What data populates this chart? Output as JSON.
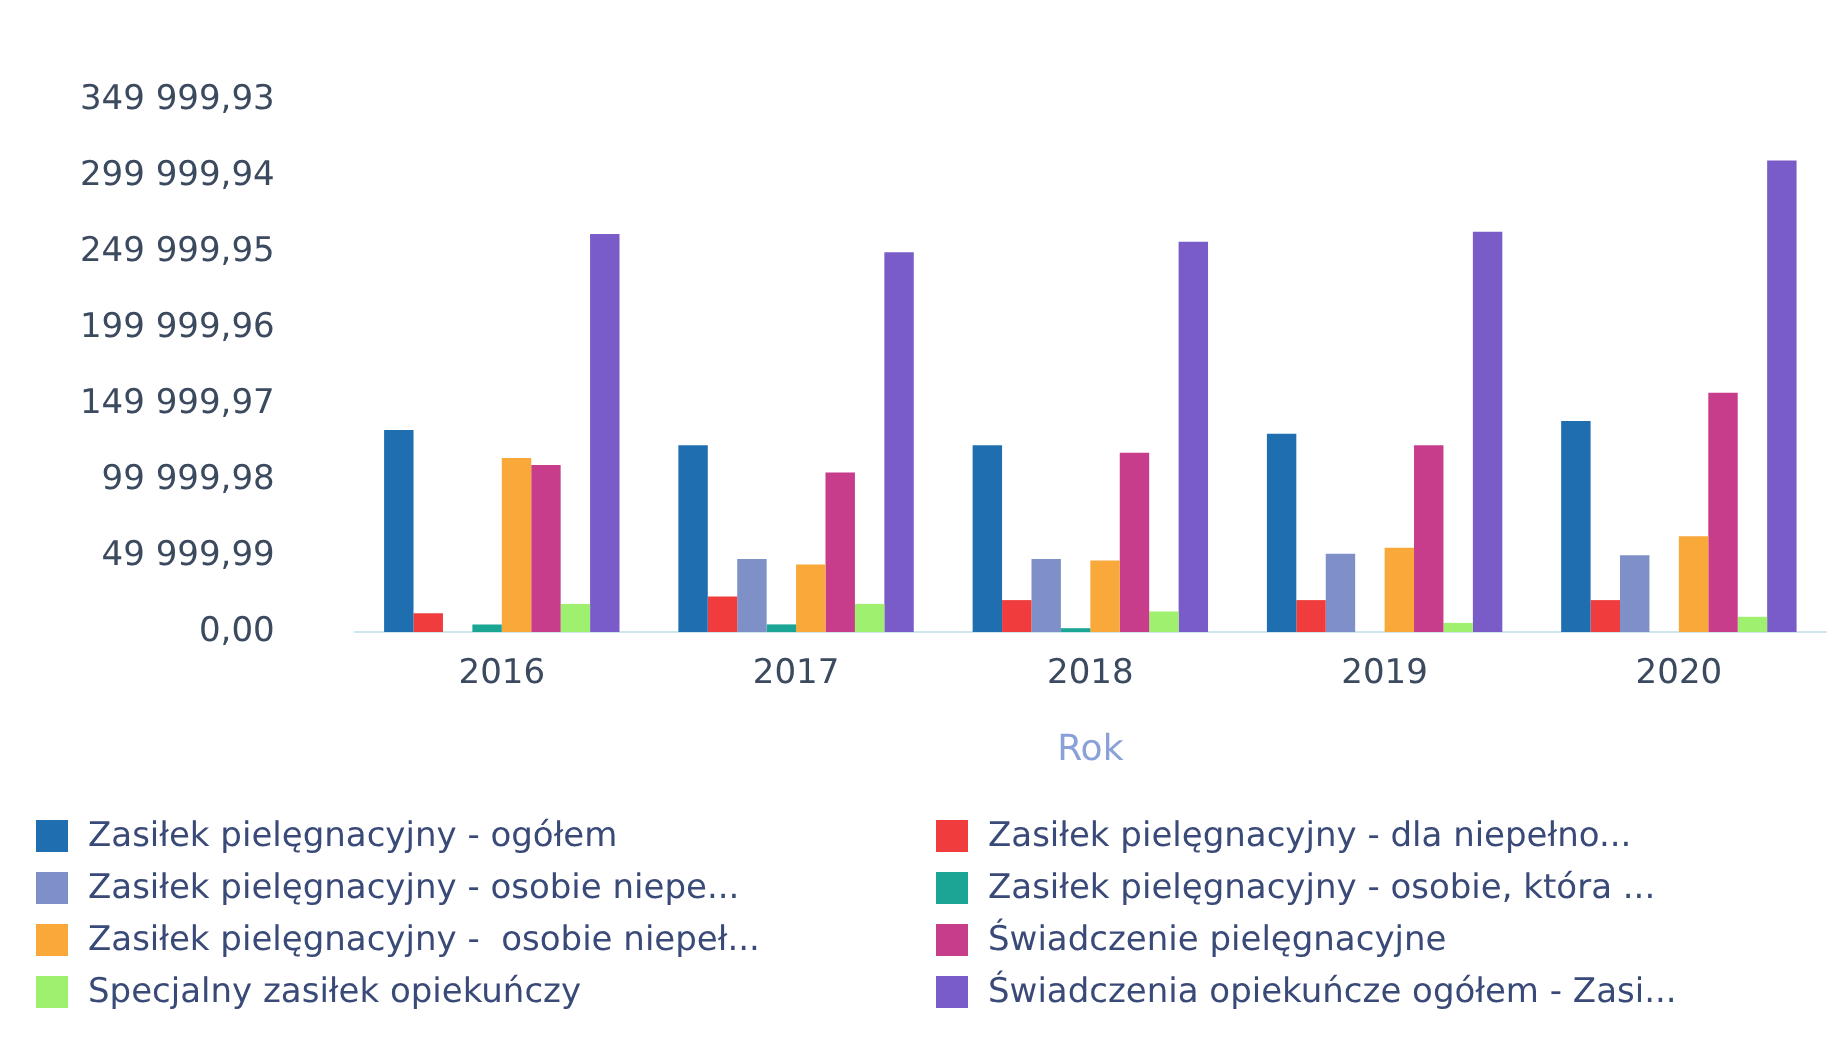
{
  "chart_data": {
    "type": "bar",
    "xlabel": "Rok",
    "categories": [
      "2016",
      "2017",
      "2018",
      "2019",
      "2020"
    ],
    "series": [
      {
        "name": "Zasiłek pielęgnacyjny - ogółem",
        "color": "#1f6fb0",
        "values": [
          133000,
          123000,
          123000,
          130500,
          139000
        ]
      },
      {
        "name": "Zasiłek pielęgnacyjny - dla niepełno...",
        "color": "#f03c3c",
        "values": [
          12300,
          23400,
          21000,
          21000,
          21000
        ]
      },
      {
        "name": "Zasiłek pielęgnacyjny - osobie niepe...",
        "color": "#7f8fc8",
        "values": [
          null,
          48000,
          48000,
          51500,
          50500
        ]
      },
      {
        "name": "Zasiłek pielęgnacyjny - osobie, która ...",
        "color": "#1aa594",
        "values": [
          5000,
          5000,
          2500,
          null,
          null
        ]
      },
      {
        "name": "Zasiłek pielęgnacyjny -  osobie niepeł...",
        "color": "#f9a83a",
        "values": [
          114500,
          44500,
          47000,
          55500,
          63000
        ]
      },
      {
        "name": "Świadczenie pielęgnacyjne",
        "color": "#c83c8c",
        "values": [
          110000,
          105000,
          118000,
          123000,
          157500
        ]
      },
      {
        "name": "Specjalny zasiłek opiekuńczy",
        "color": "#a0f070",
        "values": [
          18500,
          18500,
          13500,
          6000,
          10000
        ]
      },
      {
        "name": "Świadczenia opiekuńcze ogółem - Zasi...",
        "color": "#7a5cc8",
        "values": [
          262000,
          250000,
          257000,
          263500,
          310500
        ]
      }
    ],
    "ylim": [
      0,
      349999.93
    ],
    "yticks": [
      {
        "value": 0,
        "label": "0,00"
      },
      {
        "value": 49999.99,
        "label": "49 999,99"
      },
      {
        "value": 99999.98,
        "label": "99 999,98"
      },
      {
        "value": 149999.97,
        "label": "149 999,97"
      },
      {
        "value": 199999.96,
        "label": "199 999,96"
      },
      {
        "value": 249999.95,
        "label": "249 999,95"
      },
      {
        "value": 299999.94,
        "label": "299 999,94"
      },
      {
        "value": 349999.93,
        "label": "349 999,93"
      }
    ],
    "grid": false,
    "legend": "bottom"
  }
}
